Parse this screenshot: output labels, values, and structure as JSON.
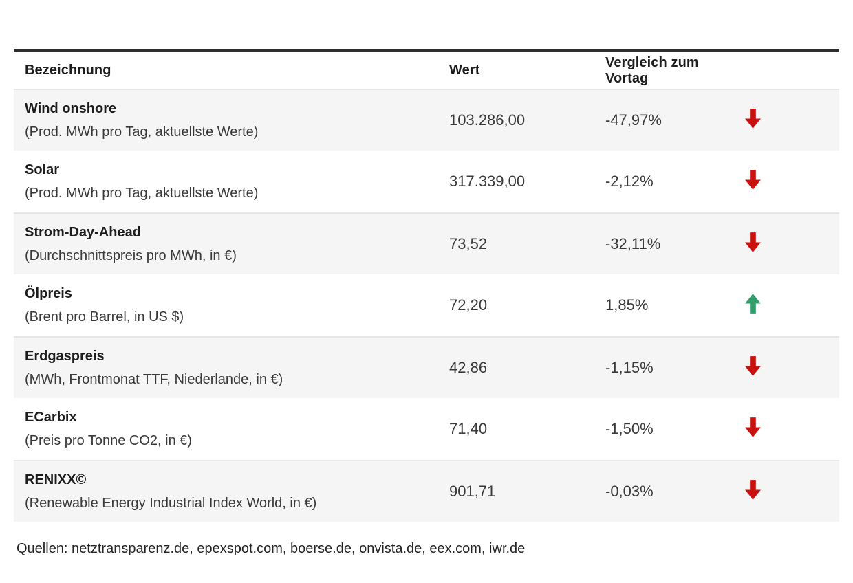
{
  "chart_data": {
    "type": "table",
    "columns": [
      "Bezeichnung",
      "Wert",
      "Vergleich zum Vortag"
    ],
    "rows": [
      {
        "name": "Wind onshore",
        "desc": "(Prod. MWh pro Tag, aktuellste Werte)",
        "value": "103.286,00",
        "change": "-47,97%",
        "direction": "down"
      },
      {
        "name": "Solar",
        "desc": "(Prod. MWh pro Tag, aktuellste Werte)",
        "value": "317.339,00",
        "change": "-2,12%",
        "direction": "down"
      },
      {
        "name": "Strom-Day-Ahead",
        "desc": "(Durchschnittspreis pro MWh, in €)",
        "value": "73,52",
        "change": "-32,11%",
        "direction": "down"
      },
      {
        "name": "Ölpreis",
        "desc": "(Brent pro Barrel, in US $)",
        "value": "72,20",
        "change": "1,85%",
        "direction": "up"
      },
      {
        "name": "Erdgaspreis",
        "desc": "(MWh, Frontmonat TTF, Niederlande, in €)",
        "value": "42,86",
        "change": "-1,15%",
        "direction": "down"
      },
      {
        "name": "ECarbix",
        "desc": "(Preis pro Tonne CO2, in €)",
        "value": "71,40",
        "change": "-1,50%",
        "direction": "down"
      },
      {
        "name": "RENIXX©",
        "desc": "(Renewable Energy Industrial Index World, in €)",
        "value": "901,71",
        "change": "-0,03%",
        "direction": "down"
      }
    ]
  },
  "footer": {
    "sources": "Quellen: netztransparenz.de, epexspot.com, boerse.de, onvista.de, eex.com, iwr.de"
  },
  "colors": {
    "up_arrow": "#319e6b",
    "down_arrow": "#c9110f",
    "top_bar": "#2e2e2e",
    "alt_row_bg": "#f5f5f5"
  }
}
